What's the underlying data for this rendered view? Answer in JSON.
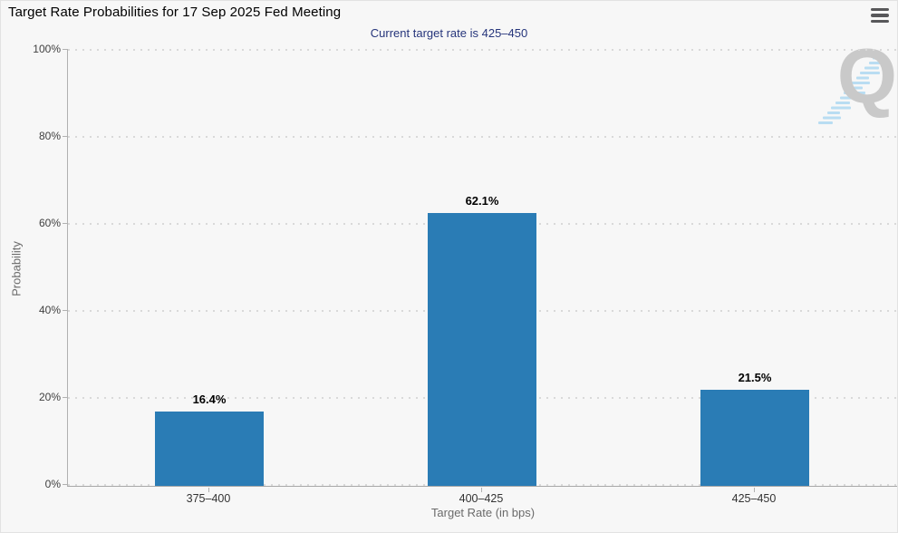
{
  "page": {
    "background": "#f7f7f7"
  },
  "header": {
    "title": "Target Rate Probabilities for 17 Sep 2025 Fed Meeting"
  },
  "icons": {
    "menu": "hamburger-icon",
    "watermark_letter": "Q"
  },
  "chart_data": {
    "type": "bar",
    "title": "Target Rate Probabilities for 17 Sep 2025 Fed Meeting",
    "subtitle": "Current target rate is 425–450",
    "categories": [
      "375–400",
      "400–425",
      "425–450"
    ],
    "values": [
      16.4,
      62.1,
      21.5
    ],
    "value_labels": [
      "16.4%",
      "62.1%",
      "21.5%"
    ],
    "xlabel": "Target Rate (in bps)",
    "ylabel": "Probability",
    "ylim": [
      0,
      100
    ],
    "ytick_values": [
      0,
      20,
      40,
      60,
      80,
      100
    ],
    "ytick_labels": [
      "0%",
      "20%",
      "40%",
      "60%",
      "80%",
      "100%"
    ],
    "grid": "horizontal-dotted",
    "legend": "none",
    "bar_color": "#2a7cb5"
  },
  "colors": {
    "background": "#f7f7f7",
    "bar": "#2a7cb5",
    "subtitle_text": "#26357b",
    "axis_line": "#b1b1b1",
    "gridline": "#d9d9d9",
    "watermark_gray": "#c9c9c9",
    "watermark_blue": "#b9ddf2"
  }
}
